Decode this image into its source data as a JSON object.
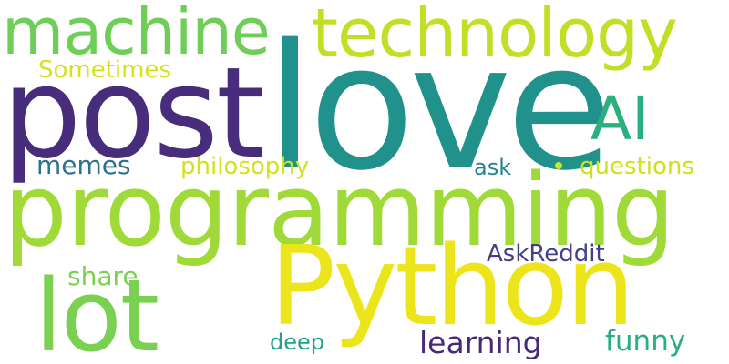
{
  "words": [
    {
      "text": "love",
      "color": "#21918c"
    },
    {
      "text": "post",
      "color": "#472d7b"
    },
    {
      "text": "programming",
      "color": "#a0da39"
    },
    {
      "text": "Python",
      "color": "#ece51b"
    },
    {
      "text": "machine",
      "color": "#6ece58"
    },
    {
      "text": "technology",
      "color": "#c0df25"
    },
    {
      "text": "AI",
      "color": "#2ab07f"
    },
    {
      "text": "lot",
      "color": "#7ad151"
    },
    {
      "text": "Sometimes",
      "color": "#d5e21a"
    },
    {
      "text": "memes",
      "color": "#2c728e"
    },
    {
      "text": "philosophy",
      "color": "#d2e21b"
    },
    {
      "text": "ask",
      "color": "#26828e"
    },
    {
      "text": "questions",
      "color": "#cde11d"
    },
    {
      "text": "share",
      "color": "#7ad151"
    },
    {
      "text": "AskReddit",
      "color": "#433e85"
    },
    {
      "text": "deep",
      "color": "#20a386"
    },
    {
      "text": "learning",
      "color": "#482878"
    },
    {
      "text": "funny",
      "color": "#28ae80"
    }
  ],
  "dot_color": "#d8e219"
}
